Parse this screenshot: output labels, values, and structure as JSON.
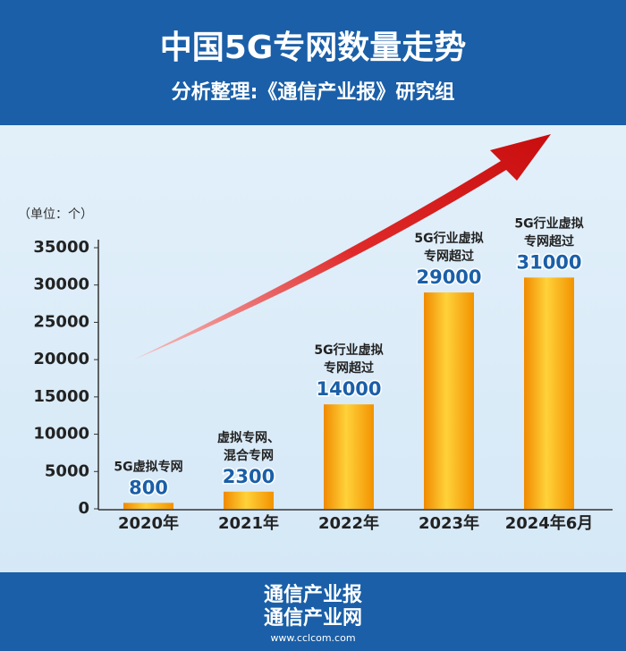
{
  "chart_data": {
    "type": "bar",
    "title": "中国5G专网数量走势",
    "subtitle": "分析整理:《通信产业报》研究组",
    "unit_label": "（单位：个）",
    "categories": [
      "2020年",
      "2021年",
      "2022年",
      "2023年",
      "2024年6月"
    ],
    "values": [
      800,
      2300,
      14000,
      29000,
      31000
    ],
    "bar_notes": [
      [
        "5G虚拟专网"
      ],
      [
        "虚拟专网、",
        "混合专网"
      ],
      [
        "5G行业虚拟",
        "专网超过"
      ],
      [
        "5G行业虚拟",
        "专网超过"
      ],
      [
        "5G行业虚拟",
        "专网超过"
      ]
    ],
    "color": "#f5a300",
    "ylim": [
      0,
      35000
    ],
    "yticks": [
      0,
      5000,
      10000,
      15000,
      20000,
      25000,
      30000,
      35000
    ],
    "footer": [
      "通信产业报",
      "通信产业网",
      "www.cclcom.com"
    ]
  }
}
